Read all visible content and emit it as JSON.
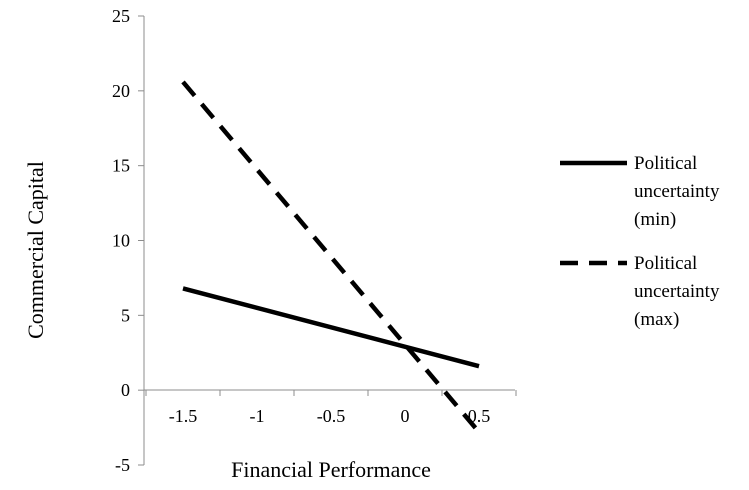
{
  "chart_data": {
    "type": "line",
    "title": "",
    "xlabel": "Financial Performance",
    "ylabel": "Commercial Capital",
    "xlim": [
      -1.5,
      0.5
    ],
    "ylim": [
      -5,
      25
    ],
    "x_ticks": [
      -1.5,
      -1,
      -0.5,
      0,
      0.5
    ],
    "x_tick_labels": [
      "-1.5",
      "-1",
      "-0.5",
      "0",
      "0.5"
    ],
    "y_ticks": [
      -5,
      0,
      5,
      10,
      15,
      20,
      25
    ],
    "y_tick_labels": [
      "-5",
      "0",
      "5",
      "10",
      "15",
      "20",
      "25"
    ],
    "grid": false,
    "legend_position": "right",
    "series": [
      {
        "name": "Political uncertainty (min)",
        "legend_lines": [
          "Political",
          "uncertainty",
          "(min)"
        ],
        "style": "solid",
        "color": "#000000",
        "x": [
          -1.5,
          0.5
        ],
        "y": [
          6.8,
          1.6
        ]
      },
      {
        "name": "Political uncertainty (max)",
        "legend_lines": [
          "Political",
          "uncertainty",
          "(max)"
        ],
        "style": "dashed",
        "color": "#000000",
        "x": [
          -1.5,
          0.5
        ],
        "y": [
          20.6,
          -2.8
        ]
      }
    ]
  }
}
